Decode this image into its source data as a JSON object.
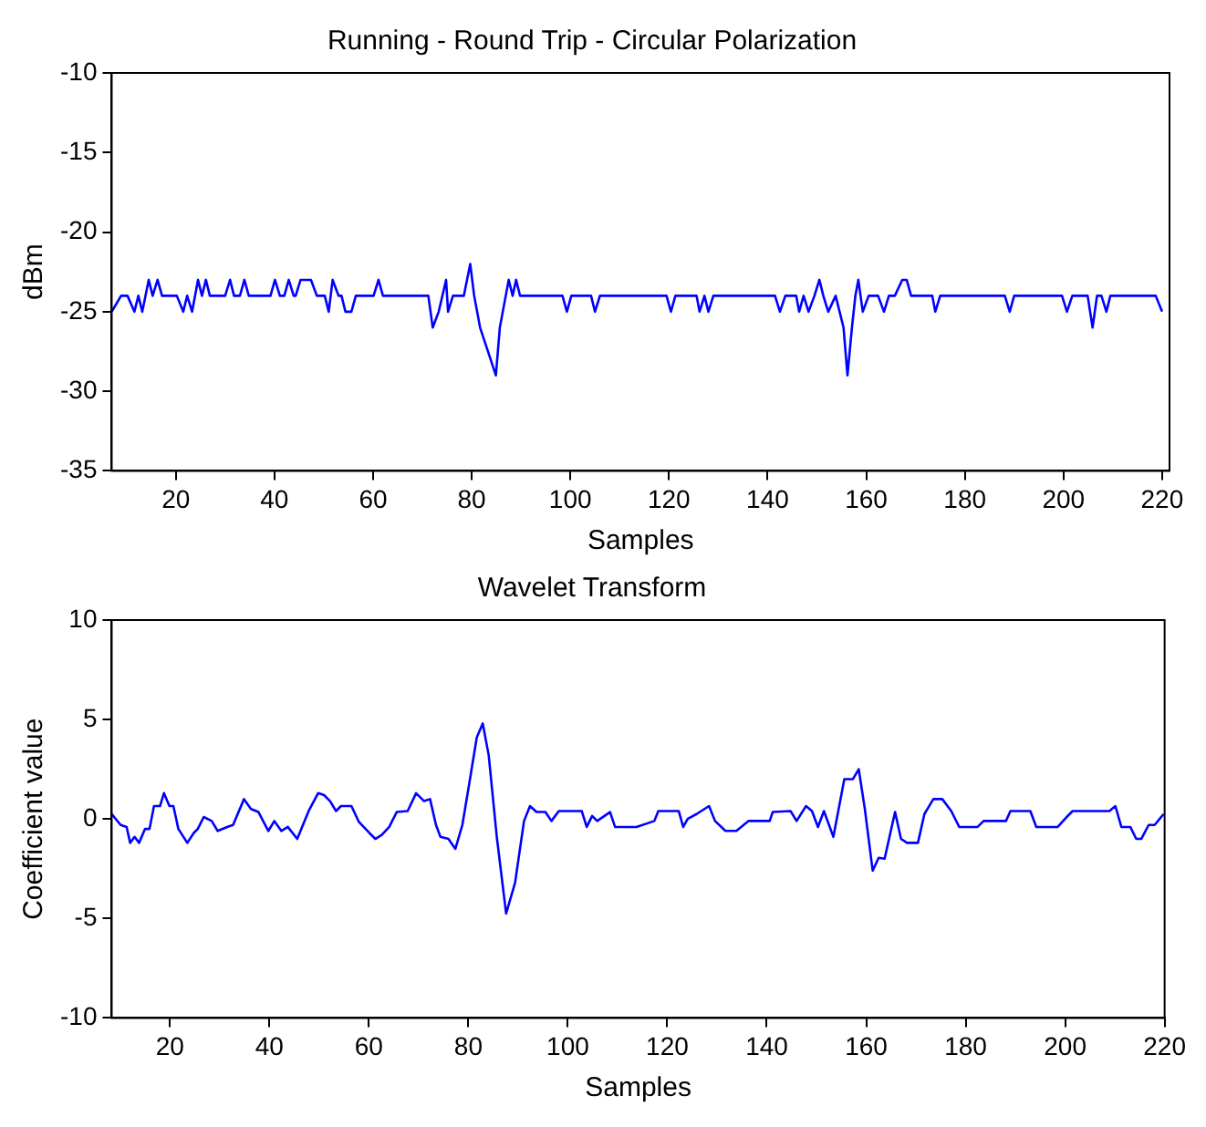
{
  "chart_data": [
    {
      "type": "line",
      "title": "Running - Round Trip - Circular Polarization",
      "xlabel": "Samples",
      "ylabel": "dBm",
      "xlim": [
        7,
        221.5
      ],
      "ylim": [
        -35,
        -10
      ],
      "xticks": [
        20,
        40,
        60,
        80,
        100,
        120,
        140,
        160,
        180,
        200,
        220
      ],
      "yticks": [
        -35,
        -30,
        -25,
        -20,
        -15,
        -10
      ],
      "grid": false,
      "x": [
        7,
        8.9,
        10.2,
        11.6,
        12.4,
        13.2,
        14.5,
        15.3,
        16.3,
        17.2,
        20.2,
        21.5,
        22.3,
        23.3,
        24.5,
        25.3,
        26.1,
        26.9,
        30,
        31,
        31.8,
        33,
        33.9,
        34.8,
        39.2,
        40.1,
        41.1,
        42,
        42.9,
        43.9,
        44.3,
        45.3,
        47.4,
        48.6,
        50.2,
        51,
        51.8,
        53,
        53.6,
        54.4,
        55.6,
        56.5,
        60.1,
        61.1,
        62,
        71.2,
        72.1,
        73.3,
        74.8,
        75.2,
        76.2,
        78.4,
        79.7,
        80.5,
        81.7,
        84.9,
        85.7,
        86.9,
        87.5,
        88.3,
        89,
        89.8,
        98.4,
        99.3,
        100.2,
        104.2,
        105,
        106,
        119.5,
        120.4,
        121.3,
        125.6,
        126.2,
        127.2,
        128,
        129,
        141.5,
        142.5,
        143.6,
        145.8,
        146.4,
        147.3,
        148.3,
        149.5,
        150.5,
        151.3,
        152.3,
        153.8,
        154.6,
        155.4,
        156.2,
        157.1,
        157.8,
        158.4,
        159.3,
        160.5,
        162.4,
        163.6,
        164.6,
        165.8,
        167.3,
        168.2,
        169.1,
        173.4,
        174,
        175,
        188.1,
        189.1,
        190,
        199.7,
        200.7,
        201.8,
        204.9,
        205.9,
        206.8,
        207.7,
        208.7,
        209.5,
        218.7,
        220
      ],
      "series": [
        {
          "color": "#0000ff",
          "values": [
            -25,
            -24,
            -24,
            -25,
            -24,
            -25,
            -23,
            -24,
            -23,
            -24,
            -24,
            -25,
            -24,
            -25,
            -23,
            -24,
            -23,
            -24,
            -24,
            -23,
            -24,
            -24,
            -23,
            -24,
            -24,
            -23,
            -24,
            -24,
            -23,
            -24,
            -24,
            -23,
            -23,
            -24,
            -24,
            -25,
            -23,
            -24,
            -24,
            -25,
            -25,
            -24,
            -24,
            -23,
            -24,
            -24,
            -26,
            -25,
            -23,
            -25,
            -24,
            -24,
            -22,
            -24,
            -26,
            -29,
            -26,
            -24,
            -23,
            -24,
            -23,
            -24,
            -24,
            -25,
            -24,
            -24,
            -25,
            -24,
            -24,
            -25,
            -24,
            -24,
            -25,
            -24,
            -25,
            -24,
            -24,
            -25,
            -24,
            -24,
            -25,
            -24,
            -25,
            -24,
            -23,
            -24,
            -25,
            -24,
            -25,
            -26,
            -29,
            -26,
            -24,
            -23,
            -25,
            -24,
            -24,
            -25,
            -24,
            -24,
            -23,
            -23,
            -24,
            -24,
            -25,
            -24,
            -24,
            -25,
            -24,
            -24,
            -25,
            -24,
            -24,
            -26,
            -24,
            -24,
            -25,
            -24,
            -24,
            -25
          ]
        }
      ]
    },
    {
      "type": "line",
      "title": "Wavelet Transform",
      "xlabel": "Samples",
      "ylabel": "Coefficient value",
      "xlim": [
        8.3,
        220
      ],
      "ylim": [
        -10,
        10
      ],
      "xticks": [
        20,
        40,
        60,
        80,
        100,
        120,
        140,
        160,
        180,
        200,
        220
      ],
      "yticks": [
        -10,
        -5,
        0,
        5,
        10
      ],
      "grid": false,
      "x": [
        8.3,
        10.1,
        11.3,
        12,
        12.9,
        13.8,
        15,
        15.9,
        16.8,
        18,
        18.8,
        19.9,
        20.7,
        21.7,
        23.5,
        24.8,
        25.6,
        26.8,
        28.4,
        29.6,
        31.5,
        32.7,
        34.9,
        36.3,
        37.8,
        39.8,
        41,
        42.4,
        43.7,
        45.6,
        47.9,
        49.8,
        51,
        52.2,
        53.4,
        54.4,
        56.5,
        58,
        60.1,
        61.3,
        62.6,
        64.1,
        65.6,
        67.8,
        69.5,
        71.1,
        72.3,
        73.5,
        74.4,
        76,
        77.4,
        78.8,
        80.2,
        81.7,
        82.9,
        84.1,
        85.7,
        87.6,
        89.4,
        91.2,
        92.4,
        93.7,
        95.5,
        96.7,
        98.2,
        102.8,
        103.8,
        104.9,
        105.9,
        108.5,
        109.5,
        113.8,
        117.4,
        118.2,
        122.3,
        123.2,
        124.1,
        125.9,
        128.4,
        129.6,
        131.7,
        133.9,
        136.3,
        140.6,
        141.2,
        144.8,
        146,
        147.9,
        149.1,
        150.3,
        151.5,
        153.4,
        155.6,
        157.3,
        158.5,
        159.7,
        161.3,
        162.5,
        163.7,
        165.8,
        167,
        168.2,
        170.4,
        171.7,
        173.5,
        175.3,
        177.1,
        178.7,
        182.4,
        183.6,
        188.1,
        189,
        193,
        194.2,
        198.5,
        200.3,
        201.5,
        208.9,
        210.1,
        211.3,
        213.1,
        214.3,
        215.3,
        216.8,
        218,
        219.8
      ],
      "series": [
        {
          "color": "#0000ff",
          "values": [
            0.25,
            -0.3,
            -0.4,
            -1.2,
            -0.9,
            -1.2,
            -0.5,
            -0.5,
            0.65,
            0.65,
            1.3,
            0.65,
            0.65,
            -0.5,
            -1.2,
            -0.7,
            -0.5,
            0.1,
            -0.1,
            -0.6,
            -0.4,
            -0.3,
            1,
            0.5,
            0.35,
            -0.6,
            -0.1,
            -0.6,
            -0.4,
            -1,
            0.4,
            1.3,
            1.2,
            0.9,
            0.4,
            0.65,
            0.65,
            -0.15,
            -0.7,
            -1,
            -0.8,
            -0.4,
            0.35,
            0.4,
            1.3,
            0.9,
            1,
            -0.3,
            -0.9,
            -1,
            -1.5,
            -0.3,
            1.8,
            4.1,
            4.8,
            3.2,
            -0.85,
            -4.75,
            -3.2,
            -0.1,
            0.65,
            0.35,
            0.35,
            -0.1,
            0.4,
            0.4,
            -0.4,
            0.15,
            -0.1,
            0.35,
            -0.4,
            -0.4,
            -0.1,
            0.4,
            0.4,
            -0.4,
            0,
            0.25,
            0.65,
            -0.1,
            -0.6,
            -0.6,
            -0.1,
            -0.1,
            0.35,
            0.4,
            -0.1,
            0.65,
            0.4,
            -0.4,
            0.4,
            -0.9,
            2,
            2,
            2.5,
            0.55,
            -2.6,
            -1.95,
            -2,
            0.35,
            -1,
            -1.2,
            -1.2,
            0.25,
            1,
            1,
            0.4,
            -0.4,
            -0.4,
            -0.1,
            -0.1,
            0.4,
            0.4,
            -0.4,
            -0.4,
            0.1,
            0.4,
            0.4,
            0.65,
            -0.4,
            -0.4,
            -1,
            -1,
            -0.3,
            -0.3,
            0.25
          ]
        }
      ]
    }
  ]
}
